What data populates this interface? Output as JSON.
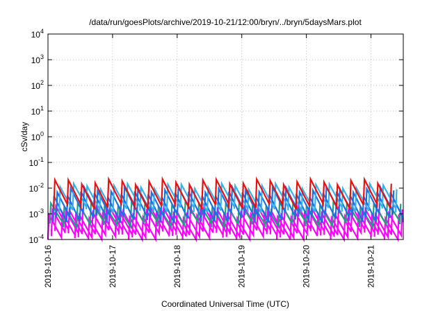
{
  "chart_data": {
    "type": "line",
    "title": "/data/run/goesPlots/archive/2019-10-21/12:00/bryn/../bryn/5daysMars.plot",
    "xlabel": "Coordinated Universal Time (UTC)",
    "ylabel": "cSv/day",
    "yscale": "log",
    "ylim": [
      0.0001,
      10000
    ],
    "xlim": [
      "2019-10-16T00:00",
      "2019-10-21T12:00"
    ],
    "grid": true,
    "x_ticks": [
      "2019-10-16",
      "2019-10-17",
      "2019-10-18",
      "2019-10-19",
      "2019-10-20",
      "2019-10-21"
    ],
    "y_ticks": [
      {
        "base": "10",
        "exp": "-4"
      },
      {
        "base": "10",
        "exp": "-3"
      },
      {
        "base": "10",
        "exp": "-2"
      },
      {
        "base": "10",
        "exp": "-1"
      },
      {
        "base": "10",
        "exp": "0"
      },
      {
        "base": "10",
        "exp": "1"
      },
      {
        "base": "10",
        "exp": "2"
      },
      {
        "base": "10",
        "exp": "3"
      },
      {
        "base": "10",
        "exp": "4"
      }
    ],
    "series_colors": [
      "#ff00ff",
      "#ff00ff",
      "#ff00ff",
      "#20a080",
      "#1e6fe0",
      "#1e6fe0",
      "#3ab0e8",
      "#e81010"
    ],
    "series": [
      {
        "color": "#ff00ff",
        "peak": 0.0009,
        "base": 0.00012,
        "period_h": 5.0,
        "phase_h": 0.0
      },
      {
        "color": "#ff00ff",
        "peak": 0.0012,
        "base": 0.00016,
        "period_h": 5.0,
        "phase_h": 1.3
      },
      {
        "color": "#ff00ff",
        "peak": 0.0016,
        "base": 0.0002,
        "period_h": 5.0,
        "phase_h": 2.6
      },
      {
        "color": "#20a080",
        "peak": 0.0025,
        "base": 0.0004,
        "period_h": 5.0,
        "phase_h": 0.7
      },
      {
        "color": "#1e6fe0",
        "peak": 0.006,
        "base": 0.0006,
        "period_h": 5.0,
        "phase_h": 1.9
      },
      {
        "color": "#1e6fe0",
        "peak": 0.009,
        "base": 0.001,
        "period_h": 5.0,
        "phase_h": 3.1
      },
      {
        "color": "#3ab0e8",
        "peak": 0.012,
        "base": 0.0015,
        "period_h": 5.0,
        "phase_h": 4.2
      },
      {
        "color": "#e81010",
        "peak": 0.018,
        "base": 0.002,
        "period_h": 5.0,
        "phase_h": 2.2
      }
    ]
  }
}
